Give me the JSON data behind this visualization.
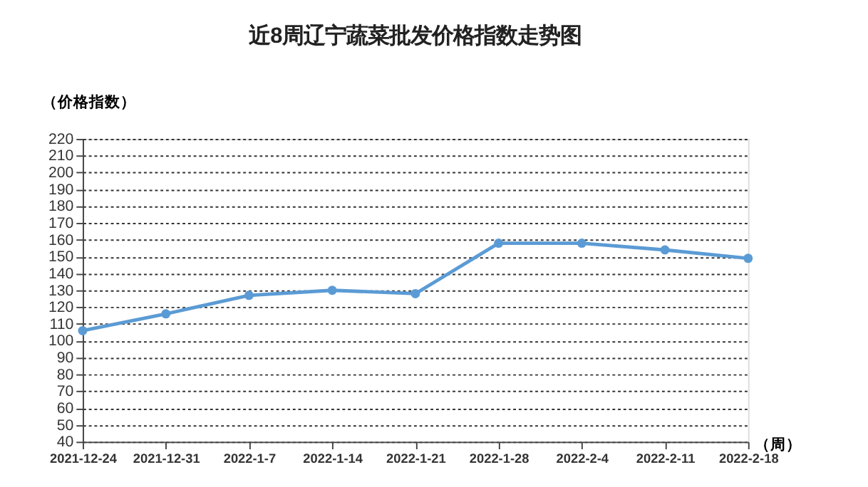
{
  "chart_data": {
    "type": "line",
    "title": "近8周辽宁蔬菜批发价格指数走势图",
    "ylabel": "（价格指数）",
    "xlabel": "（周）",
    "categories": [
      "2021-12-24",
      "2021-12-31",
      "2022-1-7",
      "2022-1-14",
      "2022-1-21",
      "2022-1-28",
      "2022-2-4",
      "2022-2-11",
      "2022-2-18"
    ],
    "series": [
      {
        "color": "#5b9bd5",
        "values": [
          106,
          116,
          127,
          130,
          128,
          158,
          158,
          154,
          149
        ]
      }
    ],
    "ylim": [
      40,
      220
    ],
    "yticks": [
      40,
      50,
      60,
      70,
      80,
      90,
      100,
      110,
      120,
      130,
      140,
      150,
      160,
      170,
      180,
      190,
      200,
      210,
      220
    ],
    "grid": "y",
    "marker": "circle",
    "line_style": "solid"
  }
}
